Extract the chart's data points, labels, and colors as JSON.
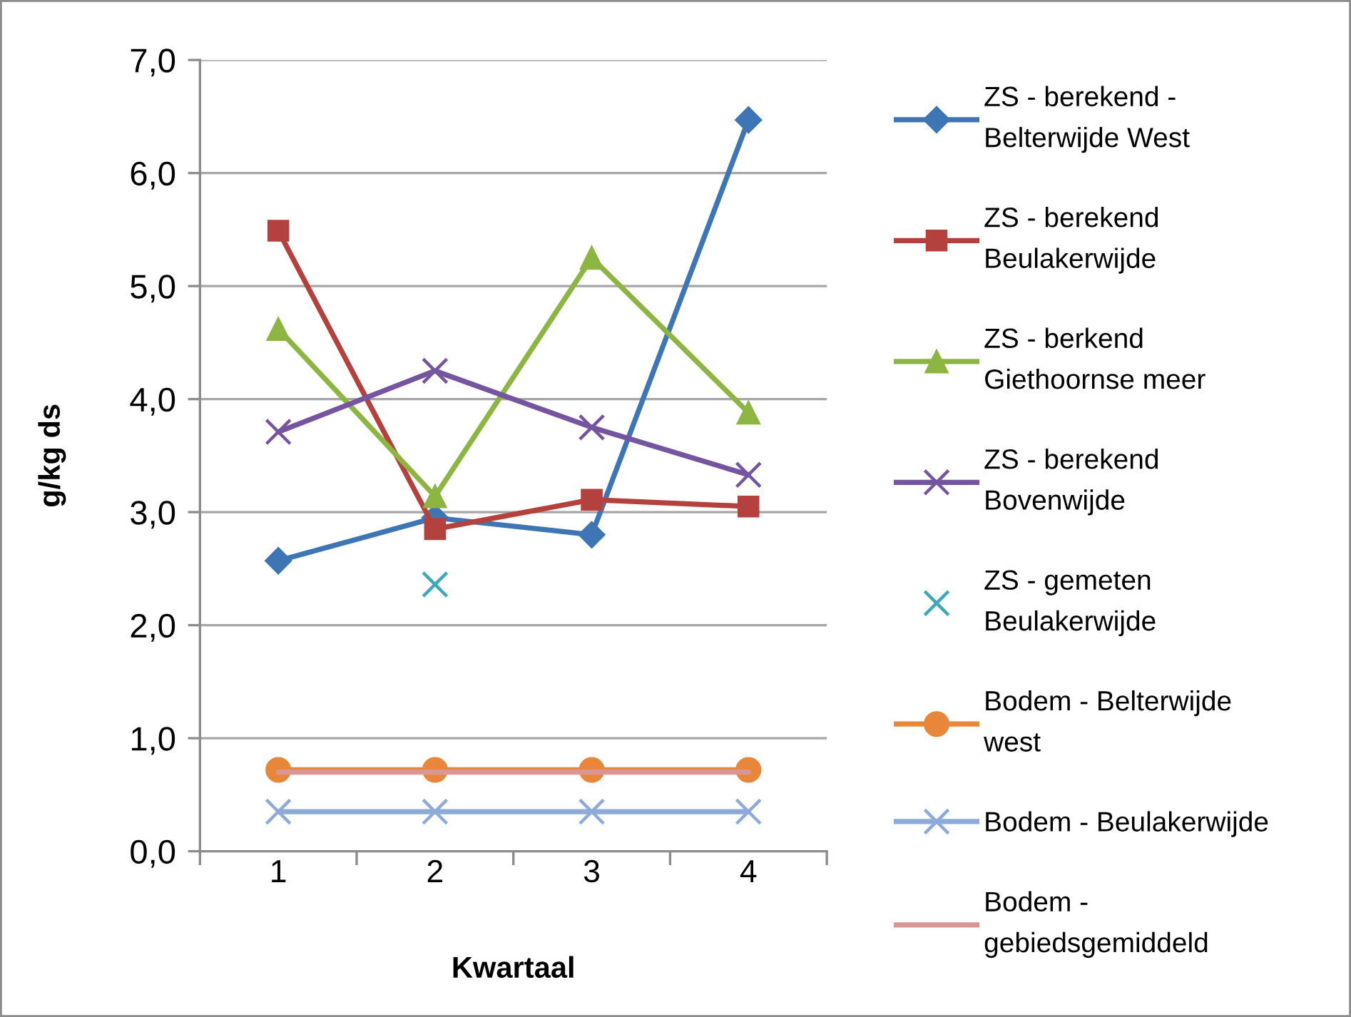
{
  "chart_data": {
    "type": "line",
    "xlabel": "Kwartaal",
    "ylabel": "g/kg ds",
    "categories": [
      "1",
      "2",
      "3",
      "4"
    ],
    "ylim": [
      0,
      7
    ],
    "yticks": [
      {
        "value": 0,
        "label": "0,0"
      },
      {
        "value": 1,
        "label": "1,0"
      },
      {
        "value": 2,
        "label": "2,0"
      },
      {
        "value": 3,
        "label": "3,0"
      },
      {
        "value": 4,
        "label": "4,0"
      },
      {
        "value": 5,
        "label": "5,0"
      },
      {
        "value": 6,
        "label": "6,0"
      },
      {
        "value": 7,
        "label": "7,0"
      }
    ],
    "grid": "y",
    "legend": "right",
    "series": [
      {
        "name": "ZS - berekend -\nBelterwijde West",
        "color": "#3e75b5",
        "marker": "diamond",
        "line_style": "solid",
        "values": [
          2.57,
          2.95,
          2.8,
          6.47
        ]
      },
      {
        "name": "ZS - berekend\nBeulakerwijde",
        "color": "#b5413e",
        "marker": "square",
        "line_style": "solid",
        "values": [
          5.49,
          2.85,
          3.11,
          3.05
        ]
      },
      {
        "name": "ZS - berkend\nGiethoornse meer",
        "color": "#8db542",
        "marker": "triangle",
        "line_style": "solid",
        "values": [
          4.62,
          3.14,
          5.25,
          3.88
        ]
      },
      {
        "name": "ZS - berekend\nBovenwijde",
        "color": "#7554a0",
        "marker": "cross",
        "line_style": "solid",
        "values": [
          3.71,
          4.25,
          3.75,
          3.33
        ]
      },
      {
        "name": "ZS - gemeten\nBeulakerwijde",
        "color": "#3ba9b8",
        "marker": "cross",
        "line_style": "none",
        "values": [
          null,
          2.36,
          null,
          null
        ]
      },
      {
        "name": "Bodem - Belterwijde\nwest",
        "color": "#e8863a",
        "marker": "circle",
        "line_style": "solid",
        "values": [
          0.72,
          0.72,
          0.72,
          0.72
        ]
      },
      {
        "name": "Bodem - Beulakerwijde",
        "color": "#8eaadb",
        "marker": "cross",
        "line_style": "solid",
        "values": [
          0.35,
          0.35,
          0.35,
          0.35
        ]
      },
      {
        "name": "Bodem -\ngebiedsgemiddeld",
        "color": "#d99694",
        "marker": "none",
        "line_style": "solid",
        "values": [
          0.7,
          0.7,
          0.7,
          0.7
        ]
      }
    ]
  }
}
